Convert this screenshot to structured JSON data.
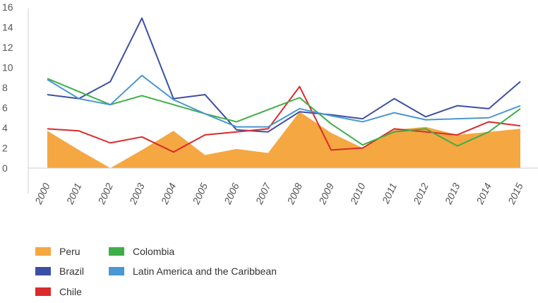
{
  "chart_data": {
    "type": "line",
    "x": [
      "2000",
      "2001",
      "2002",
      "2003",
      "2004",
      "2005",
      "2006",
      "2007",
      "2008",
      "2009",
      "2010",
      "2011",
      "2012",
      "2013",
      "2014",
      "2015"
    ],
    "y_ticks": [
      0,
      2,
      4,
      6,
      8,
      10,
      12,
      14,
      16
    ],
    "ylim": [
      0,
      16
    ],
    "grid": false,
    "series": [
      {
        "name": "Peru",
        "render": "area",
        "color": "#f5a742",
        "values": [
          3.7,
          1.8,
          -0.2,
          1.8,
          3.7,
          1.3,
          1.9,
          1.5,
          5.6,
          3.5,
          2.0,
          3.8,
          4.1,
          3.3,
          3.6,
          3.9
        ]
      },
      {
        "name": "Brazil",
        "render": "line",
        "color": "#3d4fa3",
        "values": [
          7.3,
          6.9,
          8.6,
          14.9,
          6.9,
          7.3,
          3.8,
          3.6,
          5.6,
          5.3,
          4.9,
          6.9,
          5.1,
          6.2,
          5.9,
          8.6
        ]
      },
      {
        "name": "Chile",
        "render": "line",
        "color": "#d92b2b",
        "values": [
          3.9,
          3.7,
          2.5,
          3.1,
          1.6,
          3.3,
          3.6,
          3.9,
          8.1,
          1.8,
          2.0,
          3.9,
          3.6,
          3.3,
          4.6,
          4.2
        ]
      },
      {
        "name": "Colombia",
        "render": "line",
        "color": "#3fae49",
        "values": [
          8.9,
          7.6,
          6.3,
          7.2,
          6.3,
          5.4,
          4.6,
          5.8,
          7.0,
          4.4,
          2.3,
          3.6,
          3.9,
          2.2,
          3.6,
          5.9
        ]
      },
      {
        "name": "Latin America and the Caribbean",
        "render": "line",
        "color": "#4a97d4",
        "values": [
          8.8,
          6.9,
          6.3,
          9.2,
          6.8,
          5.4,
          4.1,
          4.1,
          5.9,
          5.2,
          4.6,
          5.5,
          4.8,
          4.9,
          5.0,
          6.2
        ]
      }
    ]
  },
  "legend": {
    "items": [
      {
        "label": "Peru",
        "color": "#f5a742"
      },
      {
        "label": "Brazil",
        "color": "#3d4fa3"
      },
      {
        "label": "Chile",
        "color": "#d92b2b"
      },
      {
        "label": "Colombia",
        "color": "#3fae49"
      },
      {
        "label": "Latin America and the Caribbean",
        "color": "#4a97d4"
      }
    ]
  }
}
